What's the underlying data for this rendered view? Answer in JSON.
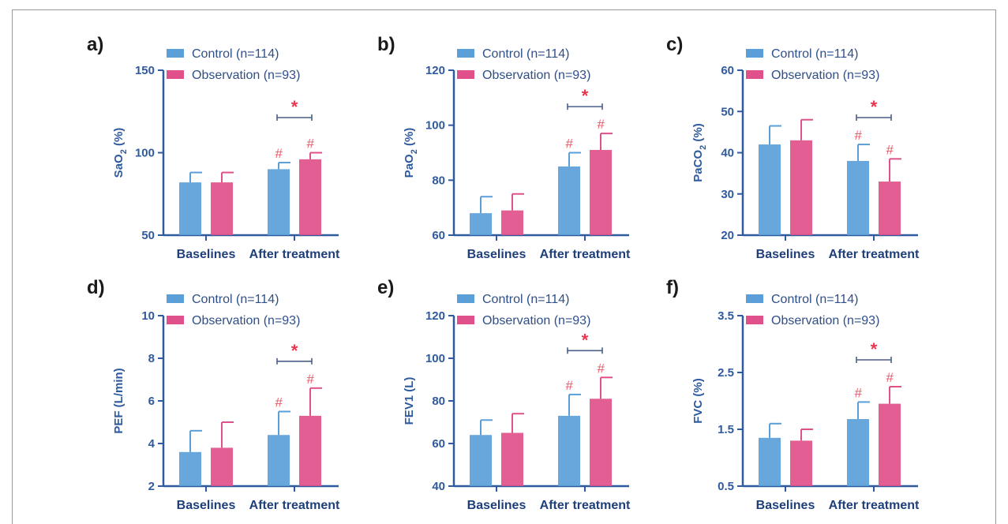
{
  "colors": {
    "control": "#5a9fd8",
    "observation": "#e0508a",
    "axis": "#2f5a9e",
    "significance": "#e8364f"
  },
  "chart_data": [
    {
      "type": "bar",
      "label": "a)",
      "ylabel": "SaO",
      "ylabel_sub": "2",
      "ylabel_suffix": " (%)",
      "ylim": [
        50,
        150
      ],
      "yticks": [
        "50",
        "100",
        "150"
      ],
      "categories": [
        "Baselines",
        "After treatment"
      ],
      "legend": [
        "Control (n=114)",
        "Observation (n=93)"
      ],
      "series": [
        {
          "name": "Control (n=114)",
          "values": [
            82,
            90
          ],
          "errors": [
            6,
            4
          ]
        },
        {
          "name": "Observation (n=93)",
          "values": [
            82,
            96
          ],
          "errors": [
            6,
            4
          ]
        }
      ],
      "markers": [
        "#",
        "#"
      ],
      "significance": "*"
    },
    {
      "type": "bar",
      "label": "b)",
      "ylabel": "PaO",
      "ylabel_sub": "2",
      "ylabel_suffix": " (%)",
      "ylim": [
        60,
        120
      ],
      "yticks": [
        "60",
        "80",
        "100",
        "120"
      ],
      "categories": [
        "Baselines",
        "After treatment"
      ],
      "legend": [
        "Control (n=114)",
        "Observation (n=93)"
      ],
      "series": [
        {
          "name": "Control (n=114)",
          "values": [
            68,
            85
          ],
          "errors": [
            6,
            5
          ]
        },
        {
          "name": "Observation (n=93)",
          "values": [
            69,
            91
          ],
          "errors": [
            6,
            6
          ]
        }
      ],
      "markers": [
        "#",
        "#"
      ],
      "significance": "*"
    },
    {
      "type": "bar",
      "label": "c)",
      "ylabel": "PaCO",
      "ylabel_sub": "2",
      "ylabel_suffix": " (%)",
      "ylim": [
        20,
        60
      ],
      "yticks": [
        "20",
        "30",
        "40",
        "50",
        "60"
      ],
      "categories": [
        "Baselines",
        "After treatment"
      ],
      "legend": [
        "Control (n=114)",
        "Observation (n=93)"
      ],
      "series": [
        {
          "name": "Control (n=114)",
          "values": [
            42,
            38
          ],
          "errors": [
            4.5,
            4
          ]
        },
        {
          "name": "Observation (n=93)",
          "values": [
            43,
            33
          ],
          "errors": [
            5,
            5.5
          ]
        }
      ],
      "markers": [
        "#",
        "#"
      ],
      "significance": "*"
    },
    {
      "type": "bar",
      "label": "d)",
      "ylabel": "PEF (L/min)",
      "ylabel_sub": "",
      "ylabel_suffix": "",
      "ylim": [
        2,
        10
      ],
      "yticks": [
        "2",
        "4",
        "6",
        "8",
        "10"
      ],
      "categories": [
        "Baselines",
        "After treatment"
      ],
      "legend": [
        "Control (n=114)",
        "Observation (n=93)"
      ],
      "series": [
        {
          "name": "Control (n=114)",
          "values": [
            3.6,
            4.4
          ],
          "errors": [
            1.0,
            1.1
          ]
        },
        {
          "name": "Observation (n=93)",
          "values": [
            3.8,
            5.3
          ],
          "errors": [
            1.2,
            1.3
          ]
        }
      ],
      "markers": [
        "#",
        "#"
      ],
      "significance": "*"
    },
    {
      "type": "bar",
      "label": "e)",
      "ylabel": "FEV1 (L)",
      "ylabel_sub": "",
      "ylabel_suffix": "",
      "ylim": [
        40,
        120
      ],
      "yticks": [
        "40",
        "60",
        "80",
        "100",
        "120"
      ],
      "categories": [
        "Baselines",
        "After treatment"
      ],
      "legend": [
        "Control (n=114)",
        "Observation (n=93)"
      ],
      "series": [
        {
          "name": "Control (n=114)",
          "values": [
            64,
            73
          ],
          "errors": [
            7,
            10
          ]
        },
        {
          "name": "Observation (n=93)",
          "values": [
            65,
            81
          ],
          "errors": [
            9,
            10
          ]
        }
      ],
      "markers": [
        "#",
        "#"
      ],
      "significance": "*"
    },
    {
      "type": "bar",
      "label": "f)",
      "ylabel": "FVC (%)",
      "ylabel_sub": "",
      "ylabel_suffix": "",
      "ylim": [
        0.5,
        3.5
      ],
      "yticks": [
        "0.5",
        "1.5",
        "2.5",
        "3.5"
      ],
      "categories": [
        "Baselines",
        "After treatment"
      ],
      "legend": [
        "Control (n=114)",
        "Observation (n=93)"
      ],
      "series": [
        {
          "name": "Control (n=114)",
          "values": [
            1.35,
            1.68
          ],
          "errors": [
            0.25,
            0.3
          ]
        },
        {
          "name": "Observation (n=93)",
          "values": [
            1.3,
            1.95
          ],
          "errors": [
            0.2,
            0.3
          ]
        }
      ],
      "markers": [
        "#",
        "#"
      ],
      "significance": "*"
    }
  ]
}
